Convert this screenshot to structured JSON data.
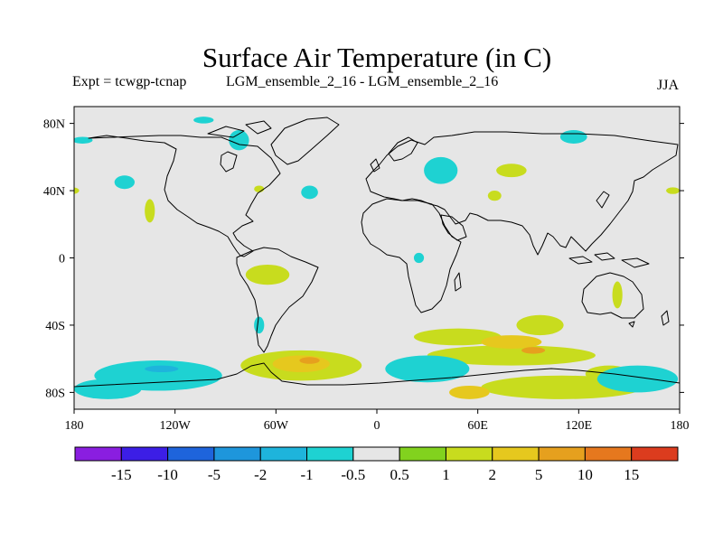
{
  "header": {
    "title": "Surface Air Temperature (in C)",
    "expt": "Expt = tcwgp-tcnap",
    "comparison": "LGM_ensemble_2_16 - LGM_ensemble_2_16",
    "season": "JJA"
  },
  "chart_data": {
    "type": "heatmap",
    "projection": "equirectangular world map with coastlines",
    "xlim": [
      -180,
      180
    ],
    "ylim": [
      -90,
      90
    ],
    "xticks": [
      {
        "value": -180,
        "label": "180"
      },
      {
        "value": -120,
        "label": "120W"
      },
      {
        "value": -60,
        "label": "60W"
      },
      {
        "value": 0,
        "label": "0"
      },
      {
        "value": 60,
        "label": "60E"
      },
      {
        "value": 120,
        "label": "120E"
      },
      {
        "value": 180,
        "label": "180"
      }
    ],
    "yticks": [
      {
        "value": 80,
        "label": "80N"
      },
      {
        "value": 40,
        "label": "40N"
      },
      {
        "value": 0,
        "label": "0"
      },
      {
        "value": -40,
        "label": "40S"
      },
      {
        "value": -80,
        "label": "80S"
      }
    ],
    "colorbar": {
      "placement": "bottom",
      "colors": [
        "#8a1ee0",
        "#3c1ee6",
        "#1e64dc",
        "#1e96dc",
        "#1eb4dc",
        "#1ed2d2",
        "#e6e6e6",
        "#82d21e",
        "#c8dc1e",
        "#e6c81e",
        "#e6a01e",
        "#e6781e",
        "#dc3c1e"
      ],
      "levels": [
        {
          "value": -15,
          "label": "-15"
        },
        {
          "value": -10,
          "label": "-10"
        },
        {
          "value": -5,
          "label": "-5"
        },
        {
          "value": -2,
          "label": "-2"
        },
        {
          "value": -1,
          "label": "-1"
        },
        {
          "value": -0.5,
          "label": "-0.5"
        },
        {
          "value": 0.5,
          "label": "0.5"
        },
        {
          "value": 1,
          "label": "1"
        },
        {
          "value": 2,
          "label": "2"
        },
        {
          "value": 5,
          "label": "5"
        },
        {
          "value": 10,
          "label": "10"
        },
        {
          "value": 15,
          "label": "15"
        }
      ]
    },
    "regions": [
      {
        "lon": 80,
        "lat": -58,
        "rx": 50,
        "ry": 6,
        "level": 1
      },
      {
        "lon": 48,
        "lat": -47,
        "rx": 26,
        "ry": 5,
        "level": 1
      },
      {
        "lon": 97,
        "lat": -40,
        "rx": 14,
        "ry": 6,
        "level": 1
      },
      {
        "lon": 110,
        "lat": -77,
        "rx": 48,
        "ry": 7,
        "level": 1
      },
      {
        "lon": 138,
        "lat": -69,
        "rx": 14,
        "ry": 5,
        "level": 1
      },
      {
        "lon": -45,
        "lat": -64,
        "rx": 36,
        "ry": 9,
        "level": 1
      },
      {
        "lon": 80,
        "lat": -50,
        "rx": 18,
        "ry": 4,
        "level": 2
      },
      {
        "lon": 55,
        "lat": -80,
        "rx": 12,
        "ry": 4,
        "level": 2
      },
      {
        "lon": -45,
        "lat": -63,
        "rx": 17,
        "ry": 5,
        "level": 2
      },
      {
        "lon": 93,
        "lat": -55,
        "rx": 7,
        "ry": 2,
        "level": 5
      },
      {
        "lon": -40,
        "lat": -61,
        "rx": 6,
        "ry": 2,
        "level": 5
      },
      {
        "lon": -130,
        "lat": -70,
        "rx": 38,
        "ry": 9,
        "level": -0.5
      },
      {
        "lon": -160,
        "lat": -78,
        "rx": 20,
        "ry": 6,
        "level": -0.5
      },
      {
        "lon": 30,
        "lat": -66,
        "rx": 25,
        "ry": 8,
        "level": -0.5
      },
      {
        "lon": 155,
        "lat": -72,
        "rx": 24,
        "ry": 8,
        "level": -0.5
      },
      {
        "lon": -128,
        "lat": -66,
        "rx": 10,
        "ry": 2,
        "level": -1
      },
      {
        "lon": -65,
        "lat": -10,
        "rx": 13,
        "ry": 6,
        "level": 1
      },
      {
        "lon": 143,
        "lat": -22,
        "rx": 3,
        "ry": 8,
        "level": 1
      },
      {
        "lon": 80,
        "lat": 52,
        "rx": 9,
        "ry": 4,
        "level": 1
      },
      {
        "lon": 70,
        "lat": 37,
        "rx": 4,
        "ry": 3,
        "level": 1
      },
      {
        "lon": -135,
        "lat": 28,
        "rx": 3,
        "ry": 7,
        "level": 1
      },
      {
        "lon": -181,
        "lat": 40,
        "rx": 4,
        "ry": 2,
        "level": 1
      },
      {
        "lon": 176,
        "lat": 40,
        "rx": 4,
        "ry": 2,
        "level": 1
      },
      {
        "lon": -70,
        "lat": 41,
        "rx": 3,
        "ry": 2,
        "level": 1
      },
      {
        "lon": 38,
        "lat": 52,
        "rx": 10,
        "ry": 8,
        "level": -0.5
      },
      {
        "lon": -82,
        "lat": 70,
        "rx": 6,
        "ry": 6,
        "level": -0.5
      },
      {
        "lon": -103,
        "lat": 82,
        "rx": 6,
        "ry": 2,
        "level": -0.5
      },
      {
        "lon": -40,
        "lat": 39,
        "rx": 5,
        "ry": 4,
        "level": -0.5
      },
      {
        "lon": 117,
        "lat": 72,
        "rx": 8,
        "ry": 4,
        "level": -0.5
      },
      {
        "lon": -150,
        "lat": 45,
        "rx": 6,
        "ry": 4,
        "level": -0.5
      },
      {
        "lon": -175,
        "lat": 70,
        "rx": 6,
        "ry": 2,
        "level": -0.5
      },
      {
        "lon": 25,
        "lat": 0,
        "rx": 3,
        "ry": 3,
        "level": -0.5
      },
      {
        "lon": -70,
        "lat": -40,
        "rx": 3,
        "ry": 5,
        "level": -0.5
      }
    ]
  }
}
